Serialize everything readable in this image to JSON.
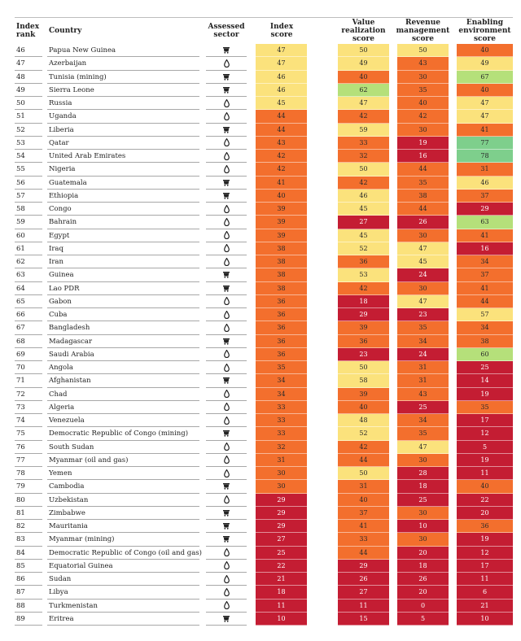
{
  "headers": {
    "rank": "Index rank",
    "country": "Country",
    "sector": "Assessed sector",
    "index_score": "Index score",
    "value_realization": "Value realization score",
    "revenue_management": "Revenue management score",
    "enabling_environment": "Enabling environment score"
  },
  "palette": {
    "good": "#7ecf8c",
    "satisfactory": "#b5e07a",
    "weak": "#fbe27c",
    "poor": "#f36f2d",
    "failing": "#c41d33"
  },
  "sector_icons": {
    "mining": "mine-cart-icon",
    "oil": "oil-drop-icon"
  },
  "rows": [
    {
      "rank": "46",
      "country": "Papua New Guinea",
      "sector": "mining",
      "index": 47,
      "vr": 50,
      "rm": 50,
      "ee": 40
    },
    {
      "rank": "47",
      "country": "Azerbaijan",
      "sector": "oil",
      "index": 47,
      "vr": 49,
      "rm": 43,
      "ee": 49
    },
    {
      "rank": "48",
      "country": "Tunisia (mining)",
      "sector": "mining",
      "index": 46,
      "vr": 40,
      "rm": 30,
      "ee": 67
    },
    {
      "rank": "49",
      "country": "Sierra Leone",
      "sector": "mining",
      "index": 46,
      "vr": 62,
      "rm": 35,
      "ee": 40
    },
    {
      "rank": "50",
      "country": "Russia",
      "sector": "oil",
      "index": 45,
      "vr": 47,
      "rm": 40,
      "ee": 47
    },
    {
      "rank": "51",
      "country": "Uganda",
      "sector": "oil",
      "index": 44,
      "vr": 42,
      "rm": 42,
      "ee": 47
    },
    {
      "rank": "52",
      "country": "Liberia",
      "sector": "mining",
      "index": 44,
      "vr": 59,
      "rm": 30,
      "ee": 41
    },
    {
      "rank": "53",
      "country": "Qatar",
      "sector": "oil",
      "index": 43,
      "vr": 33,
      "rm": 19,
      "ee": 77
    },
    {
      "rank": "54",
      "country": "United Arab Emirates",
      "sector": "oil",
      "index": 42,
      "vr": 32,
      "rm": 16,
      "ee": 78
    },
    {
      "rank": "55",
      "country": "Nigeria",
      "sector": "oil",
      "index": 42,
      "vr": 50,
      "rm": 44,
      "ee": 31
    },
    {
      "rank": "56",
      "country": "Guatemala",
      "sector": "mining",
      "index": 41,
      "vr": 42,
      "rm": 35,
      "ee": 46
    },
    {
      "rank": "57",
      "country": "Ethiopia",
      "sector": "mining",
      "index": 40,
      "vr": 46,
      "rm": 38,
      "ee": 37
    },
    {
      "rank": "58",
      "country": "Congo",
      "sector": "oil",
      "index": 39,
      "vr": 45,
      "rm": 44,
      "ee": 29
    },
    {
      "rank": "59",
      "country": "Bahrain",
      "sector": "oil",
      "index": 39,
      "vr": 27,
      "rm": 26,
      "ee": 63
    },
    {
      "rank": "60",
      "country": "Egypt",
      "sector": "oil",
      "index": 39,
      "vr": 45,
      "rm": 30,
      "ee": 41
    },
    {
      "rank": "61",
      "country": "Iraq",
      "sector": "oil",
      "index": 38,
      "vr": 52,
      "rm": 47,
      "ee": 16
    },
    {
      "rank": "62",
      "country": "Iran",
      "sector": "oil",
      "index": 38,
      "vr": 36,
      "rm": 45,
      "ee": 34
    },
    {
      "rank": "63",
      "country": "Guinea",
      "sector": "mining",
      "index": 38,
      "vr": 53,
      "rm": 24,
      "ee": 37
    },
    {
      "rank": "64",
      "country": "Lao PDR",
      "sector": "mining",
      "index": 38,
      "vr": 42,
      "rm": 30,
      "ee": 41
    },
    {
      "rank": "65",
      "country": "Gabon",
      "sector": "oil",
      "index": 36,
      "vr": 18,
      "rm": 47,
      "ee": 44
    },
    {
      "rank": "66",
      "country": "Cuba",
      "sector": "oil",
      "index": 36,
      "vr": 29,
      "rm": 23,
      "ee": 57
    },
    {
      "rank": "67",
      "country": "Bangladesh",
      "sector": "oil",
      "index": 36,
      "vr": 39,
      "rm": 35,
      "ee": 34
    },
    {
      "rank": "68",
      "country": "Madagascar",
      "sector": "mining",
      "index": 36,
      "vr": 36,
      "rm": 34,
      "ee": 38
    },
    {
      "rank": "69",
      "country": "Saudi Arabia",
      "sector": "oil",
      "index": 36,
      "vr": 23,
      "rm": 24,
      "ee": 60
    },
    {
      "rank": "70",
      "country": "Angola",
      "sector": "oil",
      "index": 35,
      "vr": 50,
      "rm": 31,
      "ee": 25
    },
    {
      "rank": "71",
      "country": "Afghanistan",
      "sector": "mining",
      "index": 34,
      "vr": 58,
      "rm": 31,
      "ee": 14
    },
    {
      "rank": "72",
      "country": "Chad",
      "sector": "oil",
      "index": 34,
      "vr": 39,
      "rm": 43,
      "ee": 19
    },
    {
      "rank": "73",
      "country": "Algeria",
      "sector": "oil",
      "index": 33,
      "vr": 40,
      "rm": 25,
      "ee": 35
    },
    {
      "rank": "74",
      "country": "Venezuela",
      "sector": "oil",
      "index": 33,
      "vr": 48,
      "rm": 34,
      "ee": 17
    },
    {
      "rank": "75",
      "country": "Democratic Republic of Congo (mining)",
      "sector": "mining",
      "index": 33,
      "vr": 52,
      "rm": 35,
      "ee": 12
    },
    {
      "rank": "76",
      "country": "South Sudan",
      "sector": "oil",
      "index": 32,
      "vr": 42,
      "rm": 47,
      "ee": 5
    },
    {
      "rank": "77",
      "country": "Myanmar (oil and gas)",
      "sector": "oil",
      "index": 31,
      "vr": 44,
      "rm": 30,
      "ee": 19
    },
    {
      "rank": "78",
      "country": "Yemen",
      "sector": "oil",
      "index": 30,
      "vr": 50,
      "rm": 28,
      "ee": 11
    },
    {
      "rank": "79",
      "country": "Cambodia",
      "sector": "mining",
      "index": 30,
      "vr": 31,
      "rm": 18,
      "ee": 40
    },
    {
      "rank": "80",
      "country": "Uzbekistan",
      "sector": "oil",
      "index": 29,
      "vr": 40,
      "rm": 25,
      "ee": 22
    },
    {
      "rank": "81",
      "country": "Zimbabwe",
      "sector": "mining",
      "index": 29,
      "vr": 37,
      "rm": 30,
      "ee": 20
    },
    {
      "rank": "82",
      "country": "Mauritania",
      "sector": "mining",
      "index": 29,
      "vr": 41,
      "rm": 10,
      "ee": 36
    },
    {
      "rank": "83",
      "country": "Myanmar (mining)",
      "sector": "mining",
      "index": 27,
      "vr": 33,
      "rm": 30,
      "ee": 19
    },
    {
      "rank": "84",
      "country": "Democratic Republic of Congo (oil and gas)",
      "sector": "oil",
      "index": 25,
      "vr": 44,
      "rm": 20,
      "ee": 12
    },
    {
      "rank": "85",
      "country": "Equatorial Guinea",
      "sector": "oil",
      "index": 22,
      "vr": 29,
      "rm": 18,
      "ee": 17
    },
    {
      "rank": "86",
      "country": "Sudan",
      "sector": "oil",
      "index": 21,
      "vr": 26,
      "rm": 26,
      "ee": 11
    },
    {
      "rank": "87",
      "country": "Libya",
      "sector": "oil",
      "index": 18,
      "vr": 27,
      "rm": 20,
      "ee": 6
    },
    {
      "rank": "88",
      "country": "Turkmenistan",
      "sector": "oil",
      "index": 11,
      "vr": 11,
      "rm": 0,
      "ee": 21
    },
    {
      "rank": "89",
      "country": "Eritrea",
      "sector": "mining",
      "index": 10,
      "vr": 15,
      "rm": 5,
      "ee": 10
    }
  ]
}
